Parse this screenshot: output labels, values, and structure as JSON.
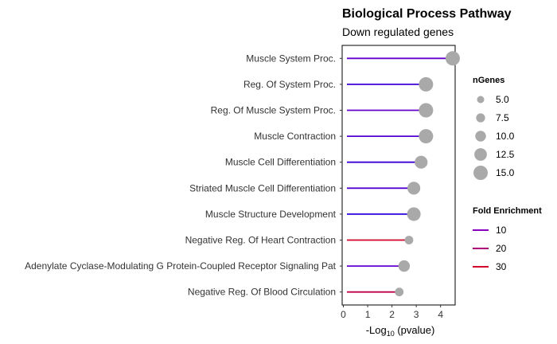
{
  "chart_data": {
    "type": "lollipop",
    "title": "Biological Process Pathway",
    "subtitle": "Down regulated genes",
    "xlabel_main": "-Log",
    "xlabel_sub": "10",
    "xlabel_tail": " (pvalue)",
    "xlim": [
      -0.05,
      4.6
    ],
    "xticks": [
      "0",
      "1",
      "2",
      "3",
      "4"
    ],
    "categories": [
      "Muscle System Proc.",
      "Reg. Of System Proc.",
      "Reg. Of Muscle System Proc.",
      "Muscle Contraction",
      "Muscle Cell Differentiation",
      "Striated Muscle Cell Differentiation",
      "Muscle Structure Development",
      "Negative Reg. Of Heart Contraction",
      "Adenylate Cyclase-Modulating G Protein-Coupled Receptor Signaling Pat",
      "Negative Reg. Of Blood Circulation"
    ],
    "neglog10_pvalue": [
      4.5,
      3.4,
      3.4,
      3.4,
      3.2,
      2.9,
      2.9,
      2.7,
      2.5,
      2.3
    ],
    "n_genes": [
      16,
      15,
      15,
      15,
      13,
      13,
      14,
      7,
      11,
      7
    ],
    "fold_enrichment": [
      8,
      6,
      8,
      7,
      6,
      7,
      5,
      33,
      8,
      26
    ],
    "legend_size": {
      "title": "nGenes",
      "labels": [
        "5.0",
        "7.5",
        "10.0",
        "12.5",
        "15.0"
      ],
      "values": [
        5.0,
        7.5,
        10.0,
        12.5,
        15.0
      ]
    },
    "legend_color": {
      "title": "Fold Enrichment",
      "labels": [
        "10",
        "20",
        "30"
      ],
      "values": [
        10,
        20,
        30
      ]
    },
    "colors": {
      "low": "#2a00e0",
      "mid": "#8a00c0",
      "high": "#d0002a",
      "point": "#a9a9a9"
    },
    "grid": false,
    "legend_position": "right"
  }
}
